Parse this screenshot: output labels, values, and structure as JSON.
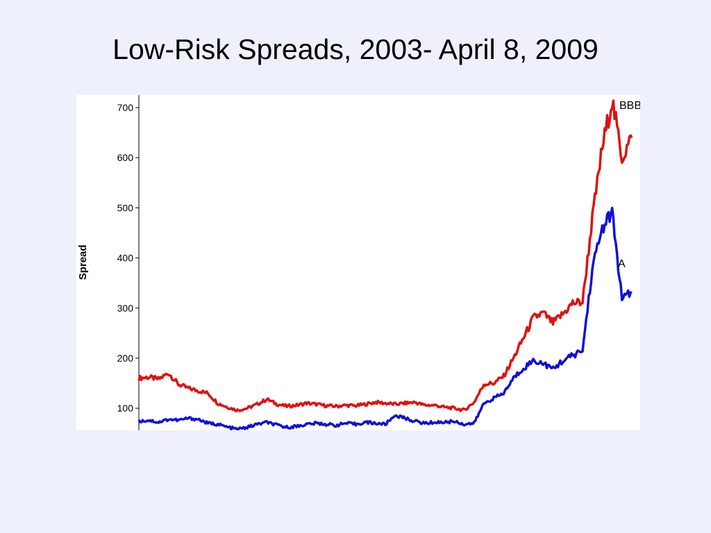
{
  "slide": {
    "title": "Low-Risk Spreads, 2003- April 8, 2009"
  },
  "chart_data": {
    "type": "line",
    "title": "",
    "xlabel": "",
    "ylabel": "Spread",
    "ylim": [
      56,
      725
    ],
    "yticks": [
      100,
      200,
      300,
      400,
      500,
      600,
      700
    ],
    "grid": false,
    "legend": "inline labels at line ends",
    "x": [
      0,
      0.02,
      0.04,
      0.06,
      0.08,
      0.1,
      0.12,
      0.14,
      0.16,
      0.18,
      0.2,
      0.22,
      0.24,
      0.26,
      0.28,
      0.3,
      0.32,
      0.34,
      0.36,
      0.38,
      0.4,
      0.42,
      0.44,
      0.46,
      0.48,
      0.5,
      0.52,
      0.54,
      0.56,
      0.58,
      0.6,
      0.62,
      0.64,
      0.66,
      0.68,
      0.7,
      0.72,
      0.74,
      0.76,
      0.78,
      0.8,
      0.82,
      0.84,
      0.86,
      0.88,
      0.9,
      0.92,
      0.94,
      0.96,
      0.98,
      1.0
    ],
    "series": [
      {
        "name": "BBB",
        "color": "#e01010",
        "values": [
          160,
          162,
          158,
          170,
          148,
          140,
          135,
          130,
          110,
          102,
          96,
          100,
          108,
          118,
          108,
          104,
          106,
          110,
          108,
          105,
          104,
          106,
          105,
          108,
          112,
          110,
          108,
          110,
          112,
          106,
          106,
          102,
          100,
          96,
          112,
          148,
          150,
          164,
          200,
          240,
          280,
          290,
          270,
          288,
          310,
          312,
          480,
          620,
          715,
          600,
          640
        ]
      },
      {
        "name": "A",
        "color": "#1010d8",
        "values": [
          74,
          76,
          72,
          78,
          76,
          80,
          78,
          70,
          68,
          62,
          58,
          62,
          68,
          72,
          66,
          62,
          64,
          68,
          70,
          68,
          66,
          70,
          68,
          72,
          70,
          68,
          86,
          80,
          74,
          70,
          72,
          72,
          74,
          68,
          70,
          110,
          120,
          130,
          160,
          180,
          195,
          190,
          178,
          195,
          205,
          215,
          380,
          460,
          490,
          318,
          330
        ]
      }
    ],
    "yticks_labels": [
      "100",
      "200",
      "300",
      "400",
      "500",
      "600",
      "700"
    ]
  }
}
